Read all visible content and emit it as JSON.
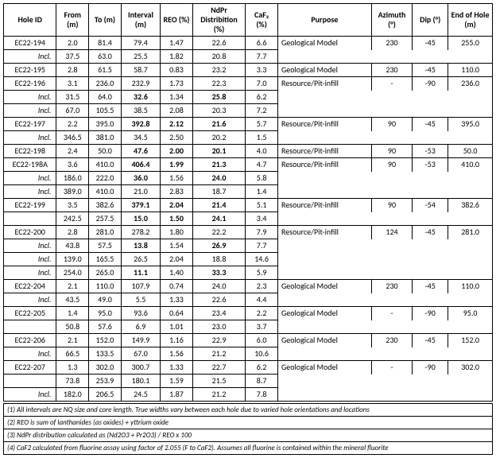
{
  "table": {
    "columns": [
      {
        "key": "hole",
        "label": "Hole ID"
      },
      {
        "key": "from",
        "label": "From (m)"
      },
      {
        "key": "to",
        "label": "To (m)"
      },
      {
        "key": "interval",
        "label": "Interval (m)"
      },
      {
        "key": "reo",
        "label": "REO (%)"
      },
      {
        "key": "ndpr",
        "label": "NdPr Distribition (%)"
      },
      {
        "key": "caf2",
        "label": "CaF₂ (%)"
      },
      {
        "key": "purpose",
        "label": "Purpose"
      },
      {
        "key": "azimuth",
        "label": "Azimuth (°)"
      },
      {
        "key": "dip",
        "label": "Dip (°)"
      },
      {
        "key": "eoh",
        "label": "End of Hole (m)"
      }
    ],
    "rows": [
      {
        "hole": "EC22-194",
        "incl": false,
        "from": "2.0",
        "to": "81.4",
        "interval": "79.4",
        "reo": "1.47",
        "ndpr": "22.6",
        "caf2": "6.6",
        "purpose": "Geological Model",
        "azimuth": "230",
        "dip": "-45",
        "eoh": "255.0",
        "bold": []
      },
      {
        "hole": "Incl.",
        "incl": true,
        "from": "37.5",
        "to": "63.0",
        "interval": "25.5",
        "reo": "1.82",
        "ndpr": "20.8",
        "caf2": "7.7",
        "purpose": "",
        "azimuth": "",
        "dip": "",
        "eoh": "",
        "bold": []
      },
      {
        "hole": "EC22-195",
        "incl": false,
        "from": "2.8",
        "to": "61.5",
        "interval": "58.7",
        "reo": "0.83",
        "ndpr": "23.2",
        "caf2": "3.3",
        "purpose": "Geological Model",
        "azimuth": "230",
        "dip": "-45",
        "eoh": "110.0",
        "bold": []
      },
      {
        "hole": "EC22-196",
        "incl": false,
        "from": "3.1",
        "to": "236.0",
        "interval": "232.9",
        "reo": "1.73",
        "ndpr": "22.3",
        "caf2": "7.0",
        "purpose": "Resource/Pit-infill",
        "azimuth": "-",
        "dip": "-90",
        "eoh": "236.0",
        "bold": []
      },
      {
        "hole": "Incl.",
        "incl": true,
        "from": "31.5",
        "to": "64.0",
        "interval": "32.6",
        "reo": "1.34",
        "ndpr": "25.8",
        "caf2": "6.2",
        "purpose": "",
        "azimuth": "",
        "dip": "",
        "eoh": "",
        "bold": [
          "interval",
          "ndpr"
        ]
      },
      {
        "hole": "Incl.",
        "incl": true,
        "from": "67.0",
        "to": "105.5",
        "interval": "38.5",
        "reo": "2.08",
        "ndpr": "20.3",
        "caf2": "7.2",
        "purpose": "",
        "azimuth": "",
        "dip": "",
        "eoh": "",
        "bold": []
      },
      {
        "hole": "EC22-197",
        "incl": false,
        "from": "2.2",
        "to": "395.0",
        "interval": "392.8",
        "reo": "2.12",
        "ndpr": "21.6",
        "caf2": "5.7",
        "purpose": "Resource/Pit-infill",
        "azimuth": "90",
        "dip": "-45",
        "eoh": "395.0",
        "bold": [
          "interval",
          "reo",
          "ndpr"
        ]
      },
      {
        "hole": "Incl.",
        "incl": true,
        "from": "346.5",
        "to": "381.0",
        "interval": "34.5",
        "reo": "2.50",
        "ndpr": "20.2",
        "caf2": "1.5",
        "purpose": "",
        "azimuth": "",
        "dip": "",
        "eoh": "",
        "bold": []
      },
      {
        "hole": "EC22-198",
        "incl": false,
        "from": "2.4",
        "to": "50.0",
        "interval": "47.6",
        "reo": "2.00",
        "ndpr": "20.1",
        "caf2": "4.0",
        "purpose": "Resource/Pit-infill",
        "azimuth": "90",
        "dip": "-53",
        "eoh": "50.0",
        "bold": [
          "interval",
          "reo",
          "ndpr"
        ]
      },
      {
        "hole": "EC22-198A",
        "incl": false,
        "from": "3.6",
        "to": "410.0",
        "interval": "406.4",
        "reo": "1.99",
        "ndpr": "21.3",
        "caf2": "4.7",
        "purpose": "Resource/Pit-infill",
        "azimuth": "90",
        "dip": "-53",
        "eoh": "410.0",
        "bold": [
          "interval",
          "reo",
          "ndpr"
        ]
      },
      {
        "hole": "Incl.",
        "incl": true,
        "from": "186.0",
        "to": "222.0",
        "interval": "36.0",
        "reo": "1.56",
        "ndpr": "24.0",
        "caf2": "5.8",
        "purpose": "",
        "azimuth": "",
        "dip": "",
        "eoh": "",
        "bold": [
          "interval",
          "ndpr"
        ]
      },
      {
        "hole": "Incl.",
        "incl": true,
        "from": "389.0",
        "to": "410.0",
        "interval": "21.0",
        "reo": "2.83",
        "ndpr": "18.7",
        "caf2": "1.4",
        "purpose": "",
        "azimuth": "",
        "dip": "",
        "eoh": "",
        "bold": []
      },
      {
        "hole": "EC22-199",
        "incl": false,
        "from": "3.5",
        "to": "382.6",
        "interval": "379.1",
        "reo": "2.04",
        "ndpr": "21.4",
        "caf2": "5.1",
        "purpose": "Resource/Pit-infill",
        "azimuth": "90",
        "dip": "-54",
        "eoh": "382.6",
        "bold": [
          "interval",
          "reo",
          "ndpr"
        ]
      },
      {
        "hole": "",
        "incl": true,
        "from": "242.5",
        "to": "257.5",
        "interval": "15.0",
        "reo": "1.50",
        "ndpr": "24.1",
        "caf2": "3.4",
        "purpose": "",
        "azimuth": "",
        "dip": "",
        "eoh": "",
        "bold": [
          "interval",
          "reo",
          "ndpr"
        ]
      },
      {
        "hole": "EC22-200",
        "incl": false,
        "from": "2.8",
        "to": "281.0",
        "interval": "278.2",
        "reo": "1.80",
        "ndpr": "22.2",
        "caf2": "7.9",
        "purpose": "Resource/Pit-infill",
        "azimuth": "124",
        "dip": "-45",
        "eoh": "281.0",
        "bold": []
      },
      {
        "hole": "Incl.",
        "incl": true,
        "from": "43.8",
        "to": "57.5",
        "interval": "13.8",
        "reo": "1.54",
        "ndpr": "26.9",
        "caf2": "7.7",
        "purpose": "",
        "azimuth": "",
        "dip": "",
        "eoh": "",
        "bold": [
          "interval",
          "ndpr"
        ]
      },
      {
        "hole": "Incl.",
        "incl": true,
        "from": "139.0",
        "to": "165.5",
        "interval": "26.5",
        "reo": "2.04",
        "ndpr": "18.8",
        "caf2": "14.6",
        "purpose": "",
        "azimuth": "",
        "dip": "",
        "eoh": "",
        "bold": []
      },
      {
        "hole": "Incl.",
        "incl": true,
        "from": "254.0",
        "to": "265.0",
        "interval": "11.1",
        "reo": "1.40",
        "ndpr": "33.3",
        "caf2": "5.9",
        "purpose": "",
        "azimuth": "",
        "dip": "",
        "eoh": "",
        "bold": [
          "interval",
          "ndpr"
        ]
      },
      {
        "hole": "EC22-204",
        "incl": false,
        "from": "2.1",
        "to": "110.0",
        "interval": "107.9",
        "reo": "0.74",
        "ndpr": "24.0",
        "caf2": "2.3",
        "purpose": "Geological Model",
        "azimuth": "230",
        "dip": "-45",
        "eoh": "110.0",
        "bold": []
      },
      {
        "hole": "Incl.",
        "incl": true,
        "from": "43.5",
        "to": "49.0",
        "interval": "5.5",
        "reo": "1.33",
        "ndpr": "22.6",
        "caf2": "4.4",
        "purpose": "",
        "azimuth": "",
        "dip": "",
        "eoh": "",
        "bold": []
      },
      {
        "hole": "EC22-205",
        "incl": false,
        "from": "1.4",
        "to": "95.0",
        "interval": "93.6",
        "reo": "0.64",
        "ndpr": "23.4",
        "caf2": "2.2",
        "purpose": "Geological Model",
        "azimuth": "-",
        "dip": "-90",
        "eoh": "95.0",
        "bold": []
      },
      {
        "hole": "",
        "incl": true,
        "from": "50.8",
        "to": "57.6",
        "interval": "6.9",
        "reo": "1.01",
        "ndpr": "23.0",
        "caf2": "3.7",
        "purpose": "",
        "azimuth": "",
        "dip": "",
        "eoh": "",
        "bold": []
      },
      {
        "hole": "EC22-206",
        "incl": false,
        "from": "2.1",
        "to": "152.0",
        "interval": "149.9",
        "reo": "1.16",
        "ndpr": "22.9",
        "caf2": "6.0",
        "purpose": "Geological Model",
        "azimuth": "230",
        "dip": "-45",
        "eoh": "152.0",
        "bold": []
      },
      {
        "hole": "Incl.",
        "incl": true,
        "from": "66.5",
        "to": "133.5",
        "interval": "67.0",
        "reo": "1.56",
        "ndpr": "21.2",
        "caf2": "10.6",
        "purpose": "",
        "azimuth": "",
        "dip": "",
        "eoh": "",
        "bold": []
      },
      {
        "hole": "EC22-207",
        "incl": false,
        "from": "1.3",
        "to": "302.0",
        "interval": "300.7",
        "reo": "1.33",
        "ndpr": "22.7",
        "caf2": "6.2",
        "purpose": "Geological Model",
        "azimuth": "-",
        "dip": "-90",
        "eoh": "302.0",
        "bold": []
      },
      {
        "hole": "",
        "incl": true,
        "from": "73.8",
        "to": "253.9",
        "interval": "180.1",
        "reo": "1.59",
        "ndpr": "21.5",
        "caf2": "8.7",
        "purpose": "",
        "azimuth": "",
        "dip": "",
        "eoh": "",
        "bold": []
      },
      {
        "hole": "Incl.",
        "incl": true,
        "from": "182.0",
        "to": "206.5",
        "interval": "24.5",
        "reo": "1.87",
        "ndpr": "21.2",
        "caf2": "7.8",
        "purpose": "",
        "azimuth": "",
        "dip": "",
        "eoh": "",
        "bold": []
      }
    ]
  },
  "footnotes": [
    "(1) All intervals are NQ size and core length. True widths vary between each hole due to varied hole orientations and locations",
    "(2) REO is sum of lanthanides (as oxides) + yttrium oxide",
    "(3) NdPr distribution calculated as (Nd2O3 + Pr2O3) / REO x 100",
    "(4) CaF2 calculated from fluorine assay using factor of 2.055 (F to CaF2). Assumes all fluorine is contained within the mineral fluorite"
  ]
}
